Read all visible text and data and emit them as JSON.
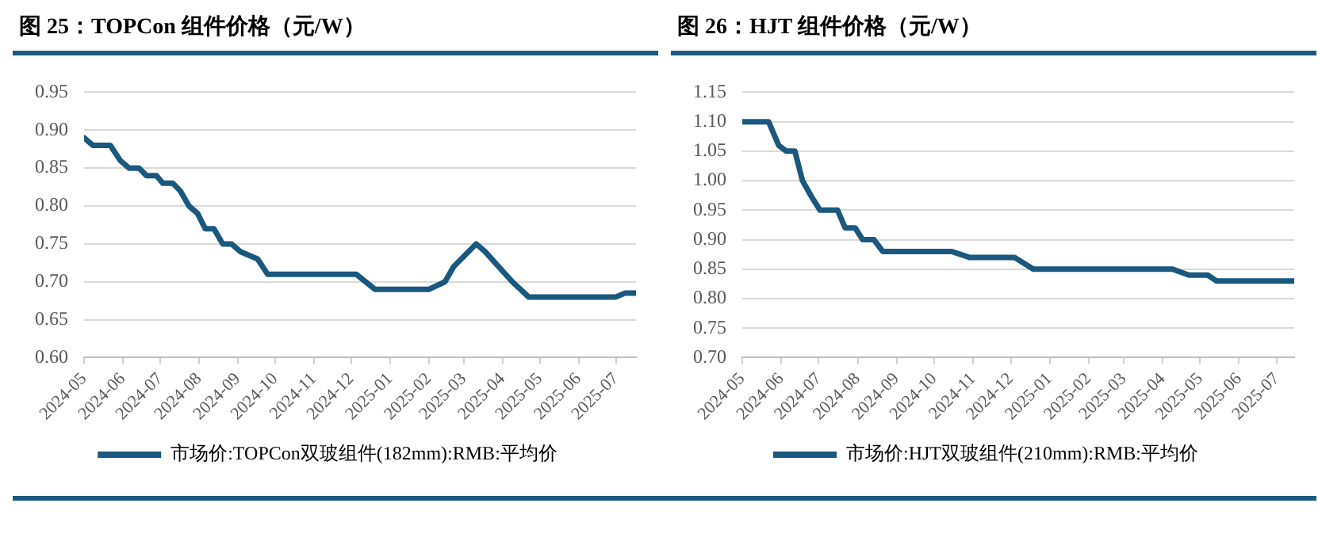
{
  "chart_data": [
    {
      "type": "line",
      "title": "图 25：TOPCon 组件价格（元/W）",
      "x": [
        "2024-05-01",
        "2024-05-08",
        "2024-05-22",
        "2024-05-30",
        "2024-06-06",
        "2024-06-14",
        "2024-06-20",
        "2024-06-28",
        "2024-07-03",
        "2024-07-11",
        "2024-07-17",
        "2024-07-24",
        "2024-07-31",
        "2024-08-06",
        "2024-08-13",
        "2024-08-20",
        "2024-08-27",
        "2024-09-03",
        "2024-09-17",
        "2024-09-25",
        "2024-12-05",
        "2024-12-20",
        "2025-02-01",
        "2025-02-14",
        "2025-02-21",
        "2025-03-11",
        "2025-03-18",
        "2025-03-29",
        "2025-04-09",
        "2025-04-22",
        "2025-07-01",
        "2025-07-08",
        "2025-07-17"
      ],
      "series": [
        {
          "name": "市场价:TOPCon双玻组件(182mm):RMB:平均价",
          "color": "#1a587f",
          "values": [
            0.89,
            0.88,
            0.88,
            0.86,
            0.85,
            0.85,
            0.84,
            0.84,
            0.83,
            0.83,
            0.82,
            0.8,
            0.79,
            0.77,
            0.77,
            0.75,
            0.75,
            0.74,
            0.73,
            0.71,
            0.71,
            0.69,
            0.69,
            0.7,
            0.72,
            0.75,
            0.74,
            0.72,
            0.7,
            0.68,
            0.68,
            0.685,
            0.685
          ]
        }
      ],
      "xlim": [
        "2024-05-01",
        "2025-07-17"
      ],
      "xticks": [
        "2024-05",
        "2024-06",
        "2024-07",
        "2024-08",
        "2024-09",
        "2024-10",
        "2024-11",
        "2024-12",
        "2025-01",
        "2025-02",
        "2025-03",
        "2025-04",
        "2025-05",
        "2025-06",
        "2025-07"
      ],
      "ylim": [
        0.6,
        0.95
      ],
      "yticks": [
        {
          "value": 0.6,
          "label": "0.60"
        },
        {
          "value": 0.65,
          "label": "0.65"
        },
        {
          "value": 0.7,
          "label": "0.70"
        },
        {
          "value": 0.75,
          "label": "0.75"
        },
        {
          "value": 0.8,
          "label": "0.80"
        },
        {
          "value": 0.85,
          "label": "0.85"
        },
        {
          "value": 0.9,
          "label": "0.90"
        },
        {
          "value": 0.95,
          "label": "0.95"
        }
      ],
      "grid": "y",
      "legend": "bottom",
      "marker": "none",
      "line_style": "solid"
    },
    {
      "type": "line",
      "title": "图 26：HJT 组件价格（元/W）",
      "x": [
        "2024-05-01",
        "2024-05-22",
        "2024-05-30",
        "2024-06-05",
        "2024-06-12",
        "2024-06-18",
        "2024-06-26",
        "2024-07-02",
        "2024-07-16",
        "2024-07-22",
        "2024-07-30",
        "2024-08-05",
        "2024-08-14",
        "2024-08-21",
        "2024-10-15",
        "2024-10-29",
        "2024-12-04",
        "2024-12-19",
        "2025-04-09",
        "2025-04-22",
        "2025-05-07",
        "2025-05-14",
        "2025-07-15"
      ],
      "series": [
        {
          "name": "市场价:HJT双玻组件(210mm):RMB:平均价",
          "color": "#1a587f",
          "values": [
            1.1,
            1.1,
            1.06,
            1.05,
            1.05,
            1.0,
            0.97,
            0.95,
            0.95,
            0.92,
            0.92,
            0.9,
            0.9,
            0.88,
            0.88,
            0.87,
            0.87,
            0.85,
            0.85,
            0.84,
            0.84,
            0.83,
            0.83
          ]
        }
      ],
      "xlim": [
        "2024-05-01",
        "2025-07-15"
      ],
      "xticks": [
        "2024-05",
        "2024-06",
        "2024-07",
        "2024-08",
        "2024-09",
        "2024-10",
        "2024-11",
        "2024-12",
        "2025-01",
        "2025-02",
        "2025-03",
        "2025-04",
        "2025-05",
        "2025-06",
        "2025-07"
      ],
      "ylim": [
        0.7,
        1.15
      ],
      "yticks": [
        {
          "value": 0.7,
          "label": "0.70"
        },
        {
          "value": 0.75,
          "label": "0.75"
        },
        {
          "value": 0.8,
          "label": "0.80"
        },
        {
          "value": 0.85,
          "label": "0.85"
        },
        {
          "value": 0.9,
          "label": "0.90"
        },
        {
          "value": 0.95,
          "label": "0.95"
        },
        {
          "value": 1.0,
          "label": "1.00"
        },
        {
          "value": 1.05,
          "label": "1.05"
        },
        {
          "value": 1.1,
          "label": "1.10"
        },
        {
          "value": 1.15,
          "label": "1.15"
        }
      ],
      "grid": "y",
      "legend": "bottom",
      "marker": "none",
      "line_style": "solid"
    }
  ]
}
